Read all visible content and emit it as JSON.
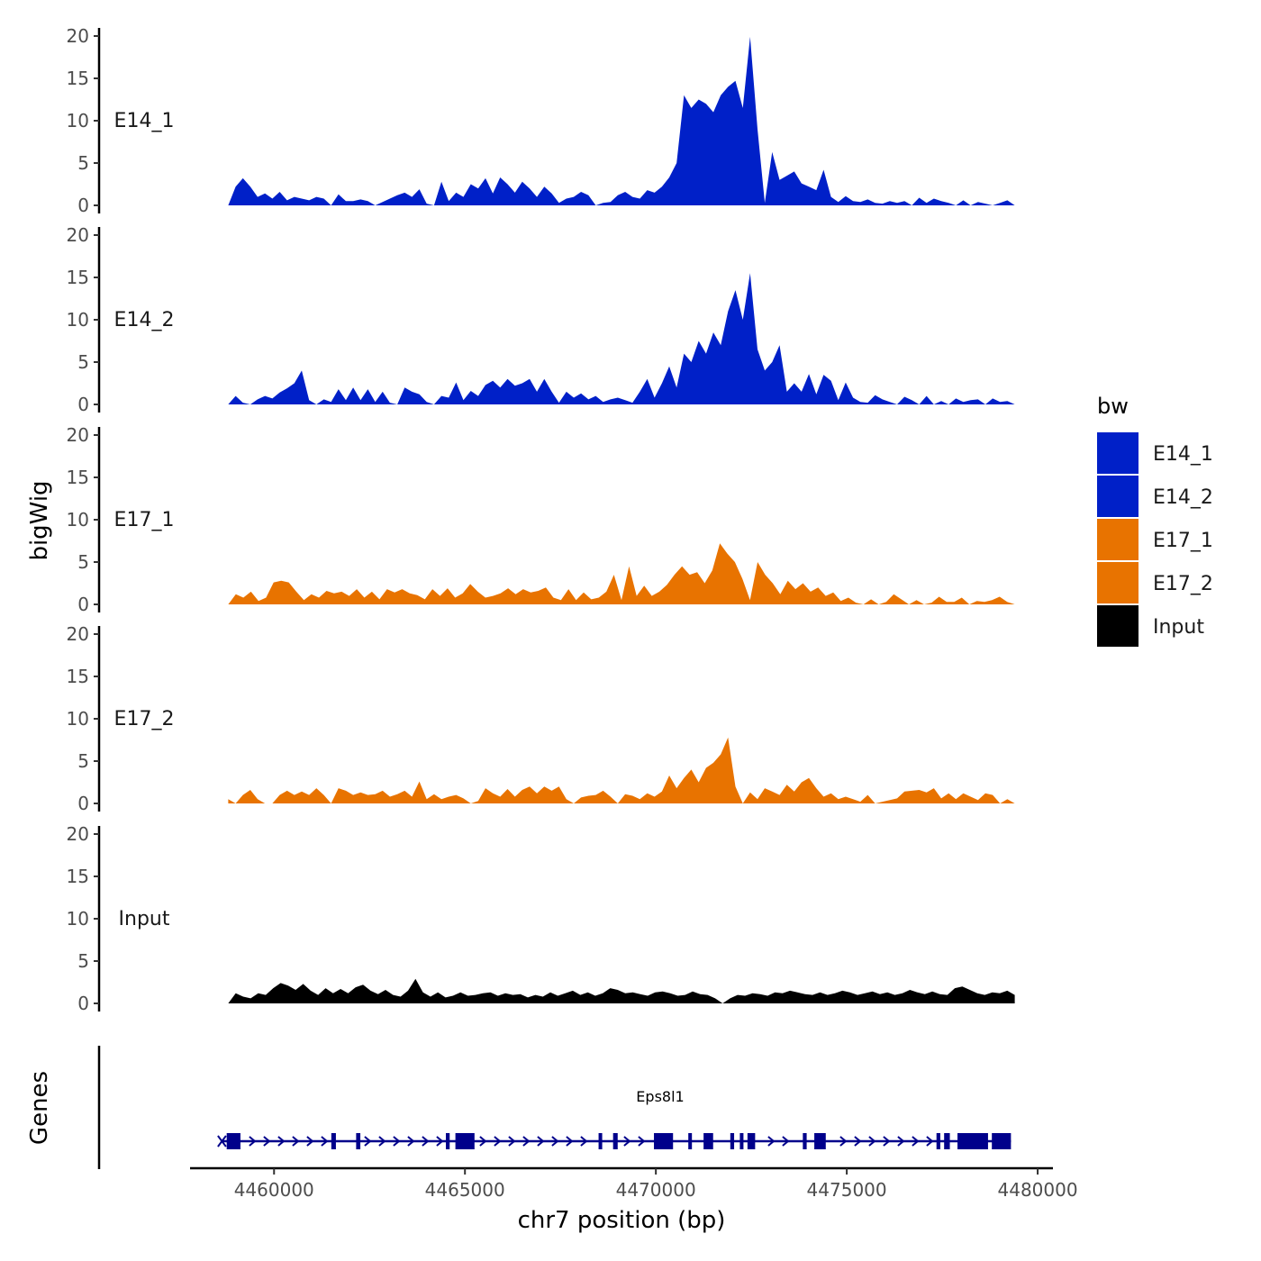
{
  "chart_data": {
    "type": "area",
    "title": "",
    "ylabel": "bigWig",
    "xlabel": "chr7 position (bp)",
    "genes_label": "Genes",
    "xlim": [
      4457800,
      4480400
    ],
    "x_ticks": [
      4460000,
      4465000,
      4470000,
      4475000,
      4480000
    ],
    "x_tick_labels": [
      "4460000",
      "4465000",
      "4470000",
      "4475000",
      "4480000"
    ],
    "ylim": [
      0,
      20
    ],
    "y_ticks": [
      0,
      5,
      10,
      15,
      20
    ],
    "y_tick_labels": [
      "0",
      "5",
      "10",
      "15",
      "20"
    ],
    "data_range": [
      4458800,
      4479400
    ],
    "legend": {
      "title": "bw",
      "position": "right",
      "entries": [
        {
          "label": "E14_1",
          "color": "#0020c8"
        },
        {
          "label": "E14_2",
          "color": "#0020c8"
        },
        {
          "label": "E17_1",
          "color": "#e87300"
        },
        {
          "label": "E17_2",
          "color": "#e87300"
        },
        {
          "label": "Input",
          "color": "#000000"
        }
      ]
    },
    "series": [
      {
        "name": "E14_1",
        "color": "#0020c8",
        "values": [
          0,
          2.2,
          3.2,
          2.2,
          1.0,
          1.4,
          0.8,
          1.6,
          0.6,
          1.0,
          0.8,
          0.6,
          1.0,
          0.8,
          0,
          1.3,
          0.5,
          0.5,
          0.7,
          0.5,
          0,
          0.4,
          0.8,
          1.2,
          1.5,
          1.0,
          1.9,
          0.2,
          0,
          2.8,
          0.5,
          1.5,
          1.0,
          2.5,
          2.0,
          3.2,
          1.4,
          3.3,
          2.5,
          1.5,
          2.8,
          2.0,
          1.0,
          2.2,
          1.4,
          0.3,
          0.8,
          1.0,
          1.6,
          1.2,
          0,
          0.3,
          0.4,
          1.2,
          1.6,
          1.0,
          0.8,
          1.8,
          1.5,
          2.2,
          3.3,
          5.0,
          13.0,
          11.5,
          12.5,
          12.0,
          11.0,
          13.0,
          14.0,
          14.7,
          11.5,
          19.9,
          9.0,
          0.3,
          6.3,
          3.0,
          3.5,
          4.0,
          2.6,
          2.2,
          1.8,
          4.2,
          1.0,
          0.4,
          1.1,
          0.5,
          0.4,
          0.7,
          0.3,
          0.2,
          0.5,
          0.3,
          0.5,
          0,
          0.9,
          0.3,
          0.8,
          0.5,
          0.3,
          0,
          0.6,
          0,
          0.4,
          0.2,
          0,
          0.3,
          0.6,
          0
        ]
      },
      {
        "name": "E14_2",
        "color": "#0020c8",
        "values": [
          0,
          1.0,
          0.2,
          0,
          0.6,
          1.0,
          0.7,
          1.4,
          1.9,
          2.5,
          4.0,
          0.5,
          0,
          0.6,
          0.3,
          1.8,
          0.5,
          2.0,
          0.5,
          1.8,
          0.3,
          1.5,
          0.2,
          0,
          2.0,
          1.5,
          1.2,
          0.3,
          0,
          1.0,
          0.8,
          2.6,
          0.5,
          1.6,
          1.0,
          2.3,
          2.8,
          2.0,
          3.0,
          2.2,
          2.5,
          3.0,
          1.5,
          3.0,
          1.5,
          0.2,
          1.5,
          0.8,
          1.3,
          0.6,
          1.0,
          0.3,
          0.6,
          0.8,
          0.5,
          0.2,
          1.5,
          3.0,
          0.8,
          2.5,
          4.5,
          2.0,
          6.0,
          5.0,
          7.5,
          6.0,
          8.5,
          7.0,
          11.0,
          13.5,
          10.0,
          15.5,
          6.5,
          4.0,
          5.0,
          7.0,
          1.5,
          2.5,
          1.5,
          3.6,
          1.2,
          3.5,
          2.8,
          0.5,
          2.6,
          0.8,
          0.3,
          0.2,
          1.1,
          0.6,
          0.3,
          0,
          0.9,
          0.5,
          0,
          1.0,
          0,
          0.4,
          0,
          0.7,
          0.3,
          0.5,
          0.6,
          0,
          0.7,
          0.3,
          0.4,
          0
        ]
      },
      {
        "name": "E17_1",
        "color": "#e87300",
        "values": [
          0,
          1.2,
          0.8,
          1.5,
          0.4,
          0.8,
          2.6,
          2.8,
          2.6,
          1.5,
          0.5,
          1.2,
          0.8,
          1.6,
          1.3,
          1.5,
          1.0,
          1.8,
          0.8,
          1.5,
          0.6,
          1.8,
          1.4,
          1.8,
          1.3,
          1.1,
          0.6,
          1.8,
          1.0,
          1.9,
          0.8,
          1.3,
          2.4,
          1.5,
          0.8,
          1.0,
          1.3,
          1.9,
          1.2,
          1.8,
          1.4,
          1.6,
          2.0,
          0.8,
          0.5,
          1.8,
          0.5,
          1.4,
          0.6,
          0.8,
          1.5,
          3.5,
          0.5,
          4.5,
          1.0,
          2.2,
          1.0,
          1.5,
          2.3,
          3.5,
          4.5,
          3.5,
          3.8,
          2.5,
          4.0,
          7.2,
          6.0,
          5.0,
          3.0,
          0.5,
          5.0,
          3.5,
          2.5,
          1.2,
          2.8,
          1.8,
          2.5,
          1.5,
          2.0,
          1.0,
          1.4,
          0.4,
          0.8,
          0.2,
          0,
          0.6,
          0,
          0.3,
          1.2,
          0.6,
          0,
          0.5,
          0,
          0.2,
          0.9,
          0.3,
          0.3,
          0.8,
          0,
          0.4,
          0.3,
          0.5,
          0.9,
          0.3,
          0
        ]
      },
      {
        "name": "E17_2",
        "color": "#e87300",
        "values": [
          0.5,
          0,
          1.0,
          1.6,
          0.5,
          0,
          0,
          1.0,
          1.5,
          1.0,
          1.4,
          1.0,
          1.8,
          1.0,
          0,
          1.8,
          1.5,
          1.0,
          1.3,
          1.0,
          1.1,
          1.5,
          0.8,
          1.1,
          1.5,
          0.8,
          2.6,
          0.5,
          1.1,
          0.5,
          0.8,
          1.0,
          0.6,
          0,
          0.3,
          1.8,
          1.2,
          0.8,
          1.7,
          0.8,
          1.6,
          2.0,
          1.2,
          2.0,
          1.5,
          2.0,
          0.5,
          0,
          0.7,
          0.9,
          1.0,
          1.5,
          0.8,
          0,
          1.1,
          0.9,
          0.5,
          1.2,
          0.8,
          1.4,
          3.3,
          1.8,
          3.0,
          4.0,
          2.5,
          4.2,
          4.8,
          5.8,
          7.8,
          2.0,
          0,
          1.3,
          0.5,
          1.8,
          1.4,
          1.0,
          2.2,
          1.4,
          2.5,
          3.0,
          1.8,
          0.8,
          1.2,
          0.5,
          0.8,
          0.5,
          0.2,
          1.0,
          0,
          0.2,
          0.4,
          0.6,
          1.4,
          1.5,
          1.6,
          1.3,
          1.8,
          0.6,
          1.2,
          0.5,
          1.2,
          0.8,
          0.4,
          1.2,
          1.0,
          0,
          0.5,
          0
        ]
      },
      {
        "name": "Input",
        "color": "#000000",
        "values": [
          0,
          1.2,
          0.8,
          0.6,
          1.2,
          1.0,
          1.8,
          2.4,
          2.1,
          1.6,
          2.3,
          1.5,
          1.0,
          1.8,
          1.2,
          1.7,
          1.2,
          1.9,
          2.2,
          1.5,
          1.1,
          1.6,
          1.0,
          0.8,
          1.5,
          2.9,
          1.3,
          0.8,
          1.3,
          0.7,
          0.9,
          1.3,
          0.9,
          1.0,
          1.2,
          1.3,
          0.9,
          1.2,
          1.0,
          1.1,
          0.7,
          1.0,
          0.8,
          1.3,
          0.9,
          1.2,
          1.5,
          1.0,
          1.3,
          0.9,
          1.2,
          1.8,
          1.6,
          1.2,
          1.3,
          1.1,
          0.9,
          1.3,
          1.4,
          1.2,
          0.9,
          1.0,
          1.4,
          1.1,
          1.0,
          0.6,
          0,
          0.6,
          1.0,
          0.9,
          1.2,
          1.1,
          0.9,
          1.3,
          1.2,
          1.5,
          1.3,
          1.1,
          1.0,
          1.3,
          1.0,
          1.2,
          1.5,
          1.3,
          1.0,
          1.2,
          1.4,
          1.1,
          1.3,
          1.0,
          1.2,
          1.6,
          1.3,
          1.1,
          1.4,
          1.1,
          1.0,
          1.8,
          2.0,
          1.6,
          1.2,
          1.0,
          1.3,
          1.2,
          1.5,
          1.0
        ]
      }
    ],
    "gene": {
      "name": "Eps8l1",
      "color": "#00008b",
      "start": 4458600,
      "end": 4479300,
      "exons": [
        [
          4458760,
          4459120
        ],
        [
          4461500,
          4461620
        ],
        [
          4462150,
          4462260
        ],
        [
          4464500,
          4464600
        ],
        [
          4464750,
          4465250
        ],
        [
          4468500,
          4468560
        ],
        [
          4468880,
          4469000
        ],
        [
          4469950,
          4470450
        ],
        [
          4470850,
          4470920
        ],
        [
          4471250,
          4471500
        ],
        [
          4471950,
          4472050
        ],
        [
          4472200,
          4472280
        ],
        [
          4472400,
          4472600
        ],
        [
          4473850,
          4473950
        ],
        [
          4474150,
          4474450
        ],
        [
          4477350,
          4477450
        ],
        [
          4477550,
          4477700
        ],
        [
          4477900,
          4478700
        ],
        [
          4478800,
          4479300
        ]
      ]
    }
  }
}
